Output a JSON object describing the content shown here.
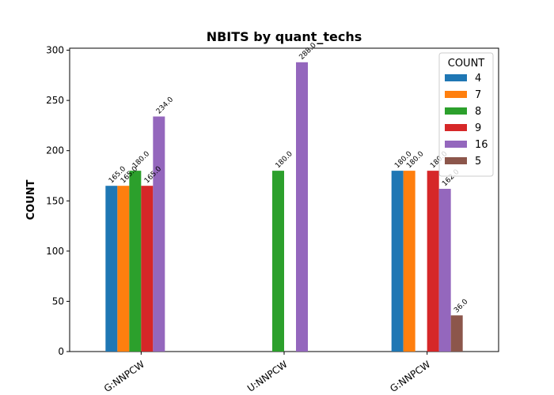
{
  "chart_data": {
    "type": "bar",
    "title": "NBITS by quant_techs",
    "ylabel": "COUNT",
    "xlabel": "",
    "categories": [
      "G:NNPCW",
      "U:NNPCW",
      "G:NNPCW"
    ],
    "ylim": [
      0,
      302
    ],
    "yticks": [
      0,
      50,
      100,
      150,
      200,
      250,
      300
    ],
    "legend": {
      "title": "COUNT",
      "position": "top-right"
    },
    "grid": false,
    "series": [
      {
        "name": "4",
        "color": "#1f77b4",
        "values": [
          165.0,
          null,
          180.0
        ]
      },
      {
        "name": "7",
        "color": "#ff7f0e",
        "values": [
          165.0,
          null,
          180.0
        ]
      },
      {
        "name": "8",
        "color": "#2ca02c",
        "values": [
          180.0,
          180.0,
          null
        ]
      },
      {
        "name": "9",
        "color": "#d62728",
        "values": [
          165.0,
          null,
          180.0
        ]
      },
      {
        "name": "16",
        "color": "#9467bd",
        "values": [
          234.0,
          288.0,
          162.0
        ]
      },
      {
        "name": "5",
        "color": "#8c564b",
        "values": [
          null,
          null,
          36.0
        ]
      }
    ],
    "data_labels": [
      [
        "165.0",
        "",
        "180.0"
      ],
      [
        "165.0",
        "",
        "180.0"
      ],
      [
        "180.0",
        "180.0",
        ""
      ],
      [
        "165.0",
        "",
        "180.0"
      ],
      [
        "234.0",
        "288.0",
        "162.0"
      ],
      [
        "",
        "",
        "36.0"
      ]
    ]
  }
}
